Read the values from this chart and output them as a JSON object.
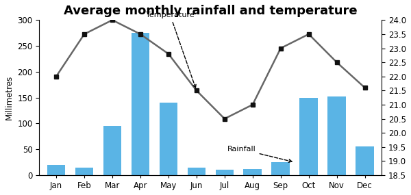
{
  "title": "Average monthly rainfall and temperature",
  "months": [
    "Jan",
    "Feb",
    "Mar",
    "Apr",
    "May",
    "Jun",
    "Jul",
    "Aug",
    "Sep",
    "Oct",
    "Nov",
    "Dec"
  ],
  "rainfall": [
    20,
    15,
    95,
    275,
    140,
    15,
    10,
    12,
    25,
    150,
    152,
    55
  ],
  "temperature": [
    22.0,
    23.5,
    24.0,
    23.5,
    22.8,
    21.5,
    20.5,
    21.0,
    23.0,
    23.5,
    22.5,
    21.6
  ],
  "bar_color": "#5ab4e5",
  "line_color": "#666666",
  "marker_color": "#111111",
  "ylabel_left": "Millimetres",
  "ylim_left": [
    0,
    300
  ],
  "yticks_left": [
    0,
    50,
    100,
    150,
    200,
    250,
    300
  ],
  "ylim_right": [
    18.5,
    24.0
  ],
  "yticks_right": [
    18.5,
    19.0,
    19.5,
    20.0,
    20.5,
    21.0,
    21.5,
    22.0,
    22.5,
    23.0,
    23.5,
    24.0
  ],
  "label_temperature": "Temperature",
  "label_rainfall": "Rainfall",
  "title_fontsize": 13,
  "axis_fontsize": 8.5
}
